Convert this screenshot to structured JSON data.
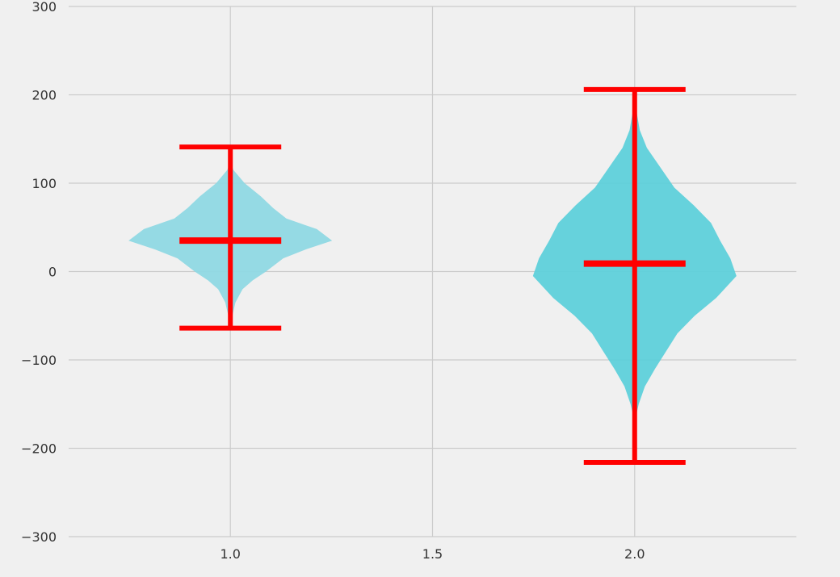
{
  "chart_data": {
    "type": "violin",
    "title": "",
    "xlabel": "",
    "ylabel": "",
    "xlim": [
      0.6,
      2.4
    ],
    "ylim": [
      -300,
      300
    ],
    "x_ticks": [
      1.0,
      1.5,
      2.0
    ],
    "x_tick_labels": [
      "1.0",
      "1.5",
      "2.0"
    ],
    "y_ticks": [
      -300,
      -200,
      -100,
      0,
      100,
      200,
      300
    ],
    "y_tick_labels": [
      "−300",
      "−200",
      "−100",
      "0",
      "100",
      "200",
      "300"
    ],
    "grid": true,
    "violins": [
      {
        "position": 1.0,
        "min": -64,
        "max": 141,
        "median": 35,
        "color": "#8fd8e3",
        "density_profile": [
          [
            -64,
            0.0
          ],
          [
            -50,
            0.02
          ],
          [
            -35,
            0.05
          ],
          [
            -20,
            0.12
          ],
          [
            -10,
            0.22
          ],
          [
            0,
            0.35
          ],
          [
            15,
            0.52
          ],
          [
            25,
            0.74
          ],
          [
            35,
            1.0
          ],
          [
            48,
            0.85
          ],
          [
            60,
            0.55
          ],
          [
            72,
            0.42
          ],
          [
            85,
            0.3
          ],
          [
            100,
            0.14
          ],
          [
            115,
            0.03
          ],
          [
            125,
            0.0
          ]
        ]
      },
      {
        "position": 2.0,
        "min": -216,
        "max": 206,
        "median": 9,
        "color": "#5ed0da",
        "density_profile": [
          [
            -170,
            0.0
          ],
          [
            -150,
            0.04
          ],
          [
            -130,
            0.1
          ],
          [
            -110,
            0.2
          ],
          [
            -90,
            0.31
          ],
          [
            -70,
            0.42
          ],
          [
            -50,
            0.59
          ],
          [
            -30,
            0.8
          ],
          [
            -5,
            1.0
          ],
          [
            15,
            0.94
          ],
          [
            35,
            0.84
          ],
          [
            55,
            0.75
          ],
          [
            75,
            0.58
          ],
          [
            95,
            0.39
          ],
          [
            115,
            0.27
          ],
          [
            140,
            0.12
          ],
          [
            160,
            0.05
          ],
          [
            180,
            0.02
          ],
          [
            206,
            0.0
          ]
        ]
      }
    ],
    "stats_color": "#ff0000"
  }
}
